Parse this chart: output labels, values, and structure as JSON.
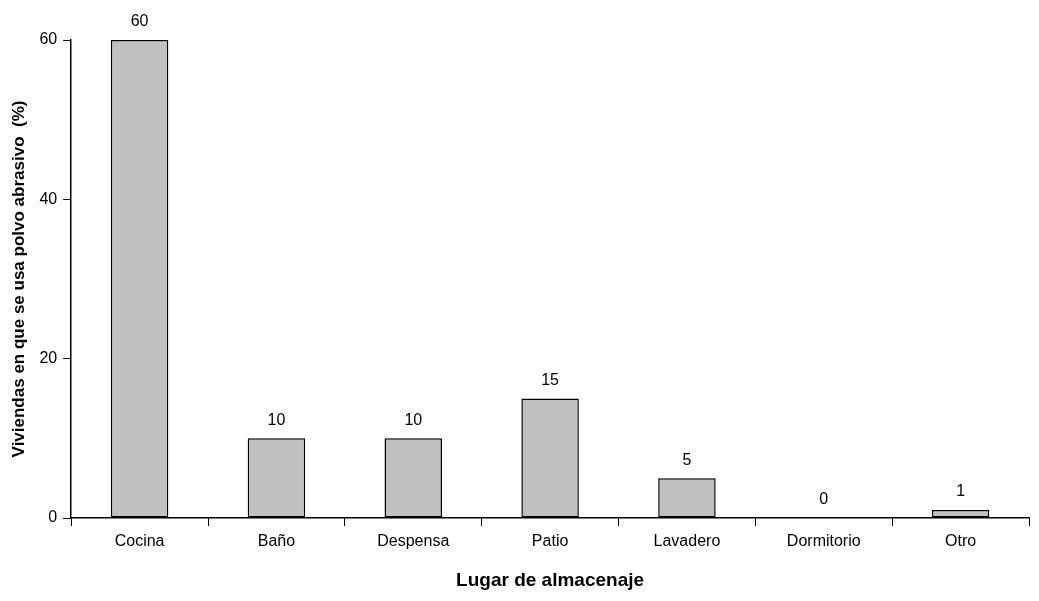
{
  "chart_data": {
    "type": "bar",
    "xlabel": "Lugar de almacenaje",
    "ylabel": "Viviendas en que se usa polvo abrasivo  (%)",
    "categories": [
      "Cocina",
      "Baño",
      "Despensa",
      "Patio",
      "Lavadero",
      "Dormitorio",
      "Otro"
    ],
    "values": [
      60,
      10,
      10,
      15,
      5,
      0,
      1
    ],
    "color": "#c0c0c0",
    "ylim": [
      0,
      60
    ],
    "yticks": [
      0,
      20,
      40,
      60
    ],
    "grid": false,
    "legend": false,
    "data_labels": true
  }
}
